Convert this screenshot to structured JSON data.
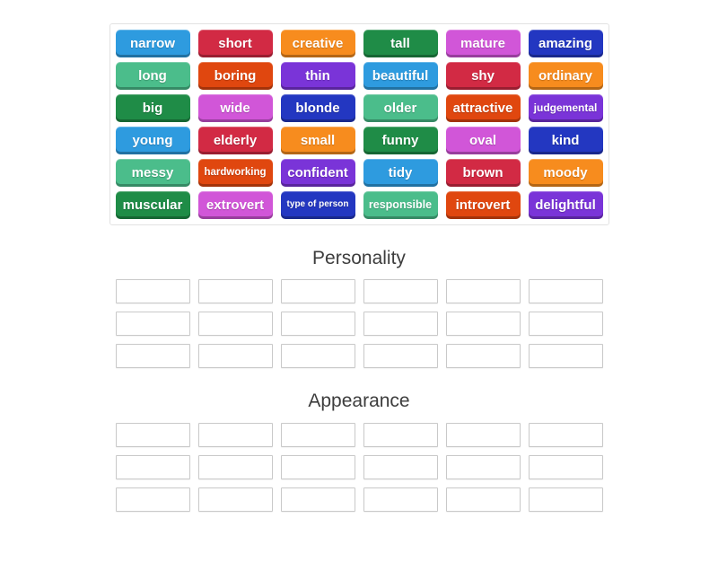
{
  "palette": {
    "sky_blue": "#2E9BDF",
    "crimson": "#D22A44",
    "orange": "#F78C1E",
    "dark_green": "#1F8C47",
    "orchid": "#D156D8",
    "dark_blue": "#2337C1",
    "sea_green": "#4BBD8B",
    "vermillion": "#E0470F",
    "violet": "#7A34D8"
  },
  "word_bank": {
    "tiles": [
      {
        "label": "narrow",
        "color": "sky_blue"
      },
      {
        "label": "short",
        "color": "crimson"
      },
      {
        "label": "creative",
        "color": "orange"
      },
      {
        "label": "tall",
        "color": "dark_green"
      },
      {
        "label": "mature",
        "color": "orchid"
      },
      {
        "label": "amazing",
        "color": "dark_blue"
      },
      {
        "label": "long",
        "color": "sea_green"
      },
      {
        "label": "boring",
        "color": "vermillion"
      },
      {
        "label": "thin",
        "color": "violet"
      },
      {
        "label": "beautiful",
        "color": "sky_blue"
      },
      {
        "label": "shy",
        "color": "crimson"
      },
      {
        "label": "ordinary",
        "color": "orange"
      },
      {
        "label": "big",
        "color": "dark_green"
      },
      {
        "label": "wide",
        "color": "orchid"
      },
      {
        "label": "blonde",
        "color": "dark_blue"
      },
      {
        "label": "older",
        "color": "sea_green"
      },
      {
        "label": "attractive",
        "color": "vermillion"
      },
      {
        "label": "judgemental",
        "color": "violet"
      },
      {
        "label": "young",
        "color": "sky_blue"
      },
      {
        "label": "elderly",
        "color": "crimson"
      },
      {
        "label": "small",
        "color": "orange"
      },
      {
        "label": "funny",
        "color": "dark_green"
      },
      {
        "label": "oval",
        "color": "orchid"
      },
      {
        "label": "kind",
        "color": "dark_blue"
      },
      {
        "label": "messy",
        "color": "sea_green"
      },
      {
        "label": "hardworking",
        "color": "vermillion"
      },
      {
        "label": "confident",
        "color": "violet"
      },
      {
        "label": "tidy",
        "color": "sky_blue"
      },
      {
        "label": "brown",
        "color": "crimson"
      },
      {
        "label": "moody",
        "color": "orange"
      },
      {
        "label": "muscular",
        "color": "dark_green"
      },
      {
        "label": "extrovert",
        "color": "orchid"
      },
      {
        "label": "type of person",
        "color": "dark_blue"
      },
      {
        "label": "responsible",
        "color": "sea_green"
      },
      {
        "label": "introvert",
        "color": "vermillion"
      },
      {
        "label": "delightful",
        "color": "violet"
      }
    ]
  },
  "groups": [
    {
      "title": "Personality",
      "rows": 3,
      "cols": 6,
      "slots": 18
    },
    {
      "title": "Appearance",
      "rows": 3,
      "cols": 6,
      "slots": 18
    }
  ]
}
